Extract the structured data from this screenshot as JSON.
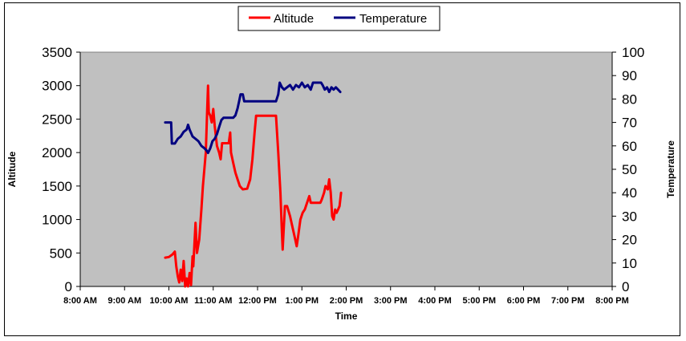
{
  "chart_data": {
    "type": "line",
    "title": "",
    "xlabel": "Time",
    "ylabel_left": "Altitude",
    "ylabel_right": "Temperature",
    "x_ticks": [
      "8:00 AM",
      "9:00 AM",
      "10:00 AM",
      "11:00 AM",
      "12:00 PM",
      "1:00 PM",
      "2:00 PM",
      "3:00 PM",
      "4:00 PM",
      "5:00 PM",
      "6:00 PM",
      "7:00 PM",
      "8:00 PM"
    ],
    "y_left_ticks": [
      "0",
      "500",
      "1000",
      "1500",
      "2000",
      "2500",
      "3000",
      "3500"
    ],
    "y_right_ticks": [
      "0",
      "10",
      "20",
      "30",
      "40",
      "50",
      "60",
      "70",
      "80",
      "90",
      "100"
    ],
    "xlim": [
      "8:00 AM",
      "8:00 PM"
    ],
    "ylim_left": [
      0,
      3500
    ],
    "ylim_right": [
      0,
      100
    ],
    "grid": false,
    "plot_background": "#c0c0c0",
    "legend_position": "top-center",
    "legend": [
      {
        "name": "Altitude",
        "color": "#ff0000"
      },
      {
        "name": "Temperature",
        "color": "#000080"
      }
    ],
    "series": [
      {
        "name": "Altitude",
        "axis": "left",
        "color": "#ff0000",
        "points": [
          [
            "9:55 AM",
            430
          ],
          [
            "10:00 AM",
            440
          ],
          [
            "10:05 AM",
            480
          ],
          [
            "10:08 AM",
            520
          ],
          [
            "10:10 AM",
            300
          ],
          [
            "10:12 AM",
            150
          ],
          [
            "10:14 AM",
            60
          ],
          [
            "10:16 AM",
            250
          ],
          [
            "10:18 AM",
            80
          ],
          [
            "10:20 AM",
            380
          ],
          [
            "10:22 AM",
            0
          ],
          [
            "10:24 AM",
            120
          ],
          [
            "10:26 AM",
            0
          ],
          [
            "10:28 AM",
            200
          ],
          [
            "10:30 AM",
            20
          ],
          [
            "10:32 AM",
            450
          ],
          [
            "10:33 AM",
            300
          ],
          [
            "10:36 AM",
            950
          ],
          [
            "10:38 AM",
            500
          ],
          [
            "10:41 AM",
            700
          ],
          [
            "10:44 AM",
            1150
          ],
          [
            "10:46 AM",
            1500
          ],
          [
            "10:48 AM",
            1750
          ],
          [
            "10:50 AM",
            2000
          ],
          [
            "10:52 AM",
            2700
          ],
          [
            "10:53 AM",
            3000
          ],
          [
            "10:54 AM",
            2600
          ],
          [
            "10:56 AM",
            2550
          ],
          [
            "10:58 AM",
            2450
          ],
          [
            "11:00 AM",
            2650
          ],
          [
            "11:02 AM",
            2400
          ],
          [
            "11:05 AM",
            2100
          ],
          [
            "11:08 AM",
            2000
          ],
          [
            "11:10 AM",
            1900
          ],
          [
            "11:12 AM",
            2140
          ],
          [
            "11:15 AM",
            2140
          ],
          [
            "11:18 AM",
            2140
          ],
          [
            "11:21 AM",
            2140
          ],
          [
            "11:23 AM",
            2300
          ],
          [
            "11:24 AM",
            2000
          ],
          [
            "11:27 AM",
            1850
          ],
          [
            "11:30 AM",
            1700
          ],
          [
            "11:33 AM",
            1600
          ],
          [
            "11:36 AM",
            1500
          ],
          [
            "11:40 AM",
            1450
          ],
          [
            "11:46 AM",
            1460
          ],
          [
            "11:50 AM",
            1600
          ],
          [
            "11:53 AM",
            1900
          ],
          [
            "11:56 AM",
            2300
          ],
          [
            "11:58 AM",
            2550
          ],
          [
            "12:02 PM",
            2550
          ],
          [
            "12:08 PM",
            2550
          ],
          [
            "12:14 PM",
            2550
          ],
          [
            "12:20 PM",
            2550
          ],
          [
            "12:25 PM",
            2550
          ],
          [
            "12:28 PM",
            2000
          ],
          [
            "12:31 PM",
            1400
          ],
          [
            "12:33 PM",
            800
          ],
          [
            "12:34 PM",
            550
          ],
          [
            "12:37 PM",
            1200
          ],
          [
            "12:40 PM",
            1200
          ],
          [
            "12:44 PM",
            1050
          ],
          [
            "12:48 PM",
            850
          ],
          [
            "12:51 PM",
            700
          ],
          [
            "12:53 PM",
            600
          ],
          [
            "12:55 PM",
            750
          ],
          [
            "12:58 PM",
            1000
          ],
          [
            "1:01 PM",
            1100
          ],
          [
            "1:04 PM",
            1150
          ],
          [
            "1:07 PM",
            1250
          ],
          [
            "1:10 PM",
            1350
          ],
          [
            "1:12 PM",
            1250
          ],
          [
            "1:15 PM",
            1250
          ],
          [
            "1:20 PM",
            1250
          ],
          [
            "1:25 PM",
            1250
          ],
          [
            "1:27 PM",
            1300
          ],
          [
            "1:30 PM",
            1400
          ],
          [
            "1:32 PM",
            1500
          ],
          [
            "1:35 PM",
            1450
          ],
          [
            "1:37 PM",
            1600
          ],
          [
            "1:39 PM",
            1400
          ],
          [
            "1:41 PM",
            1050
          ],
          [
            "1:43 PM",
            1000
          ],
          [
            "1:45 PM",
            1150
          ],
          [
            "1:47 PM",
            1100
          ],
          [
            "1:49 PM",
            1150
          ],
          [
            "1:51 PM",
            1200
          ],
          [
            "1:53 PM",
            1400
          ]
        ]
      },
      {
        "name": "Temperature",
        "axis": "right",
        "color": "#000080",
        "points": [
          [
            "9:55 AM",
            70
          ],
          [
            "10:00 AM",
            70
          ],
          [
            "10:03 AM",
            70
          ],
          [
            "10:04 AM",
            61
          ],
          [
            "10:08 AM",
            61
          ],
          [
            "10:12 AM",
            63
          ],
          [
            "10:16 AM",
            64
          ],
          [
            "10:20 AM",
            66
          ],
          [
            "10:24 AM",
            67
          ],
          [
            "10:26 AM",
            69
          ],
          [
            "10:28 AM",
            67
          ],
          [
            "10:32 AM",
            64
          ],
          [
            "10:36 AM",
            63
          ],
          [
            "10:40 AM",
            62
          ],
          [
            "10:44 AM",
            60
          ],
          [
            "10:48 AM",
            59
          ],
          [
            "10:51 AM",
            58
          ],
          [
            "10:53 AM",
            57
          ],
          [
            "10:56 AM",
            59
          ],
          [
            "10:59 AM",
            62
          ],
          [
            "11:02 AM",
            63
          ],
          [
            "11:05 AM",
            65
          ],
          [
            "11:08 AM",
            68
          ],
          [
            "11:11 AM",
            71
          ],
          [
            "11:14 AM",
            72
          ],
          [
            "11:17 AM",
            72
          ],
          [
            "11:22 AM",
            72
          ],
          [
            "11:27 AM",
            72
          ],
          [
            "11:30 AM",
            73
          ],
          [
            "11:33 AM",
            76
          ],
          [
            "11:35 AM",
            79
          ],
          [
            "11:37 AM",
            82
          ],
          [
            "11:40 AM",
            82
          ],
          [
            "11:42 AM",
            79
          ],
          [
            "11:45 AM",
            79
          ],
          [
            "11:50 AM",
            79
          ],
          [
            "11:55 AM",
            79
          ],
          [
            "12:00 PM",
            79
          ],
          [
            "12:05 PM",
            79
          ],
          [
            "12:10 PM",
            79
          ],
          [
            "12:15 PM",
            79
          ],
          [
            "12:20 PM",
            79
          ],
          [
            "12:25 PM",
            79
          ],
          [
            "12:28 PM",
            82
          ],
          [
            "12:30 PM",
            87
          ],
          [
            "12:33 PM",
            85
          ],
          [
            "12:36 PM",
            84
          ],
          [
            "12:40 PM",
            85
          ],
          [
            "12:44 PM",
            86
          ],
          [
            "12:48 PM",
            84
          ],
          [
            "12:52 PM",
            86
          ],
          [
            "12:56 PM",
            85
          ],
          [
            "1:00 PM",
            87
          ],
          [
            "1:04 PM",
            85
          ],
          [
            "1:08 PM",
            86
          ],
          [
            "1:12 PM",
            84
          ],
          [
            "1:15 PM",
            87
          ],
          [
            "1:18 PM",
            87
          ],
          [
            "1:22 PM",
            87
          ],
          [
            "1:26 PM",
            87
          ],
          [
            "1:28 PM",
            86
          ],
          [
            "1:31 PM",
            84
          ],
          [
            "1:34 PM",
            85
          ],
          [
            "1:37 PM",
            83
          ],
          [
            "1:40 PM",
            85
          ],
          [
            "1:43 PM",
            84
          ],
          [
            "1:46 PM",
            85
          ],
          [
            "1:49 PM",
            84
          ],
          [
            "1:52 PM",
            83
          ]
        ]
      }
    ]
  }
}
